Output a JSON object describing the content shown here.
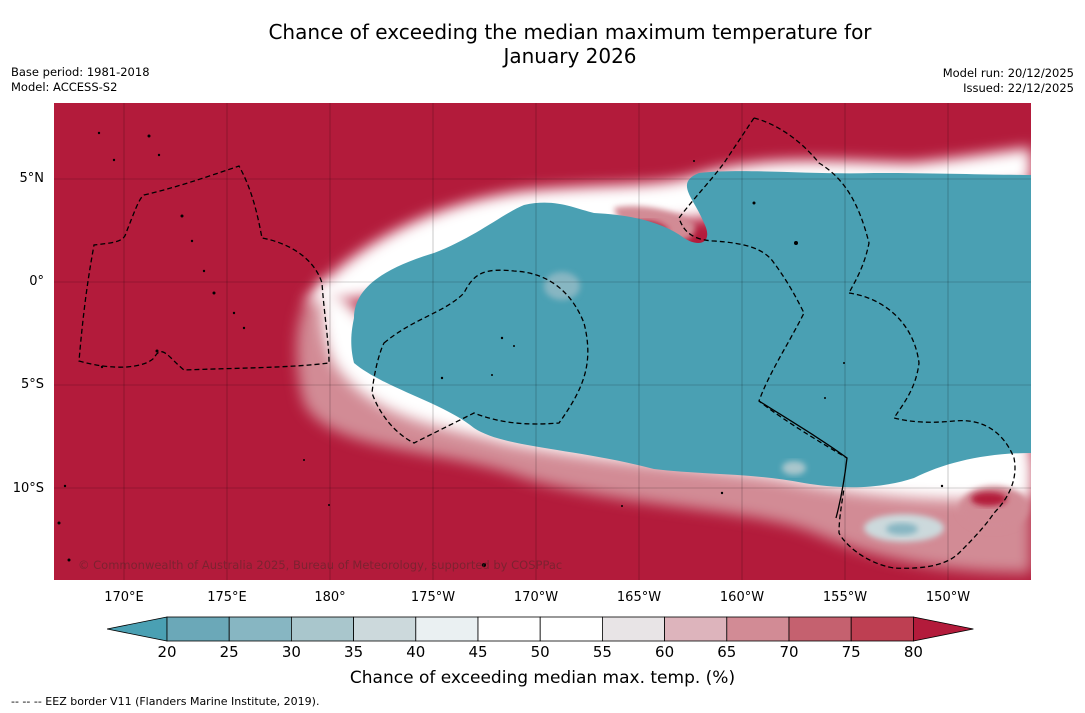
{
  "title_line1": "Chance of exceeding the median maximum temperature for",
  "title_line2": "January 2026",
  "meta_left": {
    "base_period": "Base period: 1981-2018",
    "model": "Model: ACCESS-S2"
  },
  "meta_right": {
    "model_run": "Model run: 20/12/2025",
    "issued": "Issued: 22/12/2025"
  },
  "lat_labels": [
    "5°N",
    "0°",
    "5°S",
    "10°S"
  ],
  "lon_labels": [
    "170°E",
    "175°E",
    "180°",
    "175°W",
    "170°W",
    "165°W",
    "160°W",
    "155°W",
    "150°W"
  ],
  "copyright": "© Commonwealth of Australia 2025, Bureau of Meteorology, supported by COSPPac",
  "colorbar": {
    "ticks": [
      "20",
      "25",
      "30",
      "35",
      "40",
      "45",
      "50",
      "55",
      "60",
      "65",
      "70",
      "75",
      "80"
    ],
    "label": "Chance of exceeding median max. temp. (%)",
    "colors": [
      "#4aa0b3",
      "#6ba8b8",
      "#87b6c2",
      "#a9c6cc",
      "#ccd9dc",
      "#eaf0f2",
      "#ffffff",
      "#ffffff",
      "#e8e4e6",
      "#ddb4bc",
      "#d28b95",
      "#c5616f",
      "#be3f52",
      "#b31b3b"
    ]
  },
  "legend_text": "--  --  -- EEZ border V11 (Flanders Marine Institute, 2019).",
  "colors": {
    "hot": "#b31b3b",
    "cold": "#4aa0b3"
  }
}
